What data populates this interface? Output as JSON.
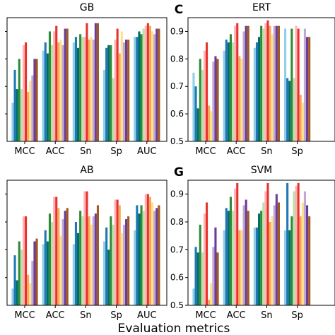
{
  "figure": {
    "xlabel": "Evaluation metrics"
  },
  "colors": [
    "#8fd0e8",
    "#1f77b4",
    "#006d6d",
    "#2e8b3a",
    "#b8e3a8",
    "#ffb3b3",
    "#e8322d",
    "#f9a85a",
    "#fde28a",
    "#c4a8d4",
    "#6a3d9a",
    "#a05a1f"
  ],
  "chart_data": [
    {
      "type": "bar",
      "panel_letter": "",
      "title": "GB",
      "categories": [
        "MCC",
        "ACC",
        "Sn",
        "Sp",
        "AUC"
      ],
      "ylim": [
        0.5,
        0.95
      ],
      "yticks": [],
      "series": [
        {
          "values": [
            0.64,
            0.83,
            0.86,
            0.76,
            0.88
          ]
        },
        {
          "values": [
            0.76,
            0.86,
            0.88,
            0.84,
            0.88
          ]
        },
        {
          "values": [
            0.69,
            0.82,
            0.84,
            0.85,
            0.9
          ]
        },
        {
          "values": [
            0.8,
            0.9,
            0.89,
            0.85,
            0.89
          ]
        },
        {
          "values": [
            0.69,
            0.85,
            0.88,
            0.73,
            0.91
          ]
        },
        {
          "values": [
            0.85,
            0.9,
            0.88,
            0.87,
            0.92
          ]
        },
        {
          "values": [
            0.86,
            0.92,
            0.93,
            0.91,
            0.93
          ]
        },
        {
          "values": [
            0.68,
            0.86,
            0.87,
            0.82,
            0.92
          ]
        },
        {
          "values": [
            0.72,
            0.87,
            0.88,
            0.9,
            0.9
          ]
        },
        {
          "values": [
            0.74,
            0.85,
            0.87,
            0.86,
            0.89
          ]
        },
        {
          "values": [
            0.8,
            0.91,
            0.93,
            0.87,
            0.91
          ]
        },
        {
          "values": [
            0.8,
            0.91,
            0.93,
            0.87,
            0.91
          ]
        }
      ]
    },
    {
      "type": "bar",
      "panel_letter": "C",
      "title": "ERT",
      "categories": [
        "MCC",
        "ACC",
        "Sn",
        "Sp"
      ],
      "ylim": [
        0.5,
        0.95
      ],
      "yticks": [
        0.5,
        0.6,
        0.7,
        0.8,
        0.9
      ],
      "series": [
        {
          "values": [
            0.75,
            0.83,
            0.84,
            0.91
          ]
        },
        {
          "values": [
            0.7,
            0.87,
            0.86,
            0.73
          ]
        },
        {
          "values": [
            0.62,
            0.86,
            0.88,
            0.72
          ]
        },
        {
          "values": [
            0.8,
            0.89,
            0.92,
            0.91
          ]
        },
        {
          "values": [
            0.76,
            0.86,
            0.91,
            0.73
          ]
        },
        {
          "values": [
            0.83,
            0.92,
            0.93,
            0.92
          ]
        },
        {
          "values": [
            0.86,
            0.93,
            0.94,
            0.91
          ]
        },
        {
          "values": [
            0.63,
            0.81,
            0.92,
            0.67
          ]
        },
        {
          "values": [
            0.61,
            0.8,
            0.89,
            0.64
          ]
        },
        {
          "values": [
            0.79,
            0.9,
            0.92,
            0.91
          ]
        },
        {
          "values": [
            0.81,
            0.92,
            0.92,
            0.88
          ]
        },
        {
          "values": [
            0.8,
            0.92,
            0.92,
            0.88
          ]
        }
      ]
    },
    {
      "type": "bar",
      "panel_letter": "",
      "title": "AB",
      "categories": [
        "MCC",
        "ACC",
        "Sn",
        "Sp",
        "AUC"
      ],
      "ylim": [
        0.5,
        0.95
      ],
      "yticks": [],
      "series": [
        {
          "values": [
            0.56,
            0.72,
            0.72,
            0.73,
            0.77
          ]
        },
        {
          "values": [
            0.68,
            0.77,
            0.8,
            0.78,
            0.86
          ]
        },
        {
          "values": [
            0.59,
            0.73,
            0.76,
            0.7,
            0.83
          ]
        },
        {
          "values": [
            0.73,
            0.83,
            0.84,
            0.82,
            0.86
          ]
        },
        {
          "values": [
            0.7,
            0.8,
            0.82,
            0.79,
            0.84
          ]
        },
        {
          "values": [
            0.82,
            0.89,
            0.91,
            0.88,
            0.9
          ]
        },
        {
          "values": [
            0.82,
            0.89,
            0.91,
            0.88,
            0.9
          ]
        },
        {
          "values": [
            0.61,
            0.85,
            0.82,
            0.86,
            0.89
          ]
        },
        {
          "values": [
            0.58,
            0.75,
            0.79,
            0.76,
            0.87
          ]
        },
        {
          "values": [
            0.66,
            0.81,
            0.82,
            0.79,
            0.84
          ]
        },
        {
          "values": [
            0.73,
            0.84,
            0.83,
            0.81,
            0.85
          ]
        },
        {
          "values": [
            0.74,
            0.85,
            0.86,
            0.82,
            0.86
          ]
        }
      ]
    },
    {
      "type": "bar",
      "panel_letter": "G",
      "title": "SVM",
      "categories": [
        "MCC",
        "ACC",
        "Sn",
        "Sp"
      ],
      "ylim": [
        0.5,
        0.95
      ],
      "yticks": [
        0.5,
        0.6,
        0.7,
        0.8,
        0.9
      ],
      "series": [
        {
          "values": [
            0.56,
            0.77,
            0.78,
            0.77
          ]
        },
        {
          "values": [
            0.71,
            0.85,
            0.78,
            0.94
          ]
        },
        {
          "values": [
            0.69,
            0.84,
            0.83,
            0.77
          ]
        },
        {
          "values": [
            0.79,
            0.89,
            0.84,
            0.82
          ]
        },
        {
          "values": [
            0.69,
            0.84,
            0.87,
            0.91
          ]
        },
        {
          "values": [
            0.83,
            0.92,
            0.91,
            0.93
          ]
        },
        {
          "values": [
            0.87,
            0.94,
            0.94,
            0.94
          ]
        },
        {
          "values": [
            0.52,
            0.77,
            0.8,
            0.82
          ]
        },
        {
          "values": [
            0.58,
            0.77,
            0.82,
            0.87
          ]
        },
        {
          "values": [
            0.71,
            0.86,
            0.86,
            0.91
          ]
        },
        {
          "values": [
            0.78,
            0.88,
            0.9,
            0.86
          ]
        },
        {
          "values": [
            0.69,
            0.84,
            0.87,
            0.82
          ]
        }
      ]
    }
  ]
}
